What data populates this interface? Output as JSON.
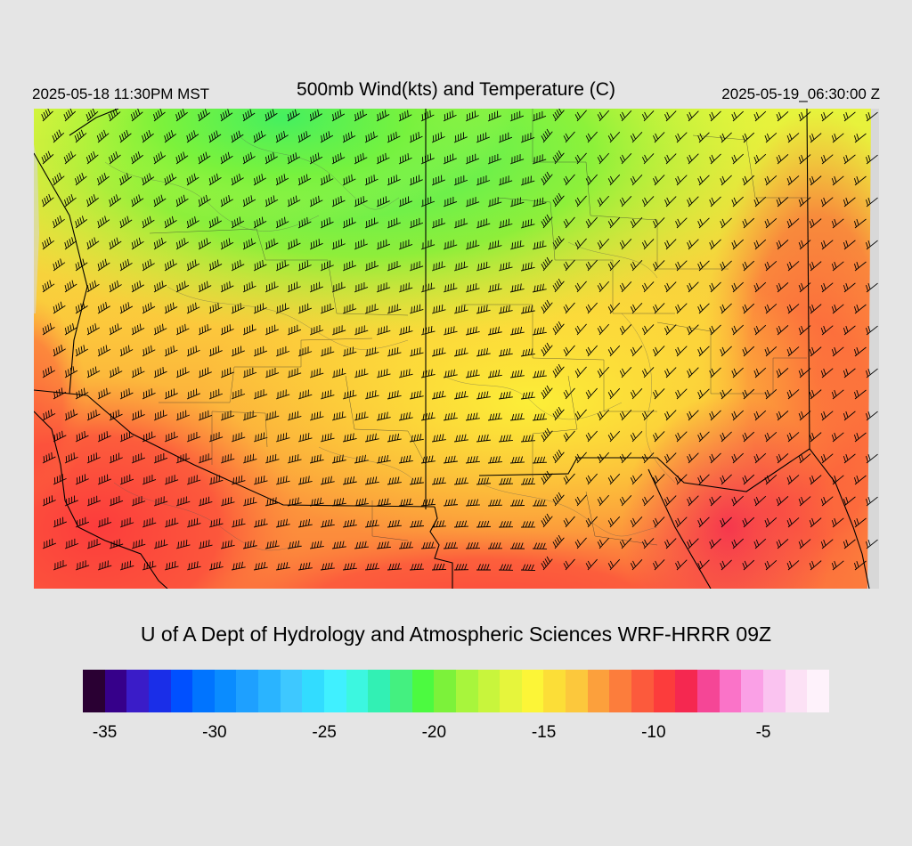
{
  "header": {
    "local_time": "2025-05-18 11:30PM MST",
    "title": "500mb Wind(kts) and Temperature (C)",
    "utc_time": "2025-05-19_06:30:00 Z"
  },
  "credit": "U of A Dept of Hydrology and Atmospheric Sciences WRF-HRRR 09Z",
  "colorbar": {
    "colors": [
      "#2a0033",
      "#36008a",
      "#3a1cc8",
      "#1a2ee8",
      "#0050ff",
      "#0074ff",
      "#0a8cff",
      "#1ea0ff",
      "#2ab4ff",
      "#3ec8ff",
      "#32dcff",
      "#40f0ff",
      "#3cf7e0",
      "#32f0b4",
      "#44f080",
      "#4cfa40",
      "#7cf23a",
      "#a8f53c",
      "#c8f53c",
      "#e6f53c",
      "#fcf537",
      "#fcde37",
      "#fcc83c",
      "#fca03c",
      "#fc7d3c",
      "#fc5a3c",
      "#fc3c3c",
      "#f52850",
      "#f54696",
      "#fa73c8",
      "#faa0e6",
      "#fac3f0",
      "#fce1f5",
      "#fef2fb"
    ],
    "tick_labels": [
      "-35",
      "-30",
      "-25",
      "-20",
      "-15",
      "-10",
      "-5"
    ]
  },
  "map": {
    "variable": "500mb temperature (C) shaded, wind barbs (kts)",
    "land_color": "#d8d8d8"
  }
}
